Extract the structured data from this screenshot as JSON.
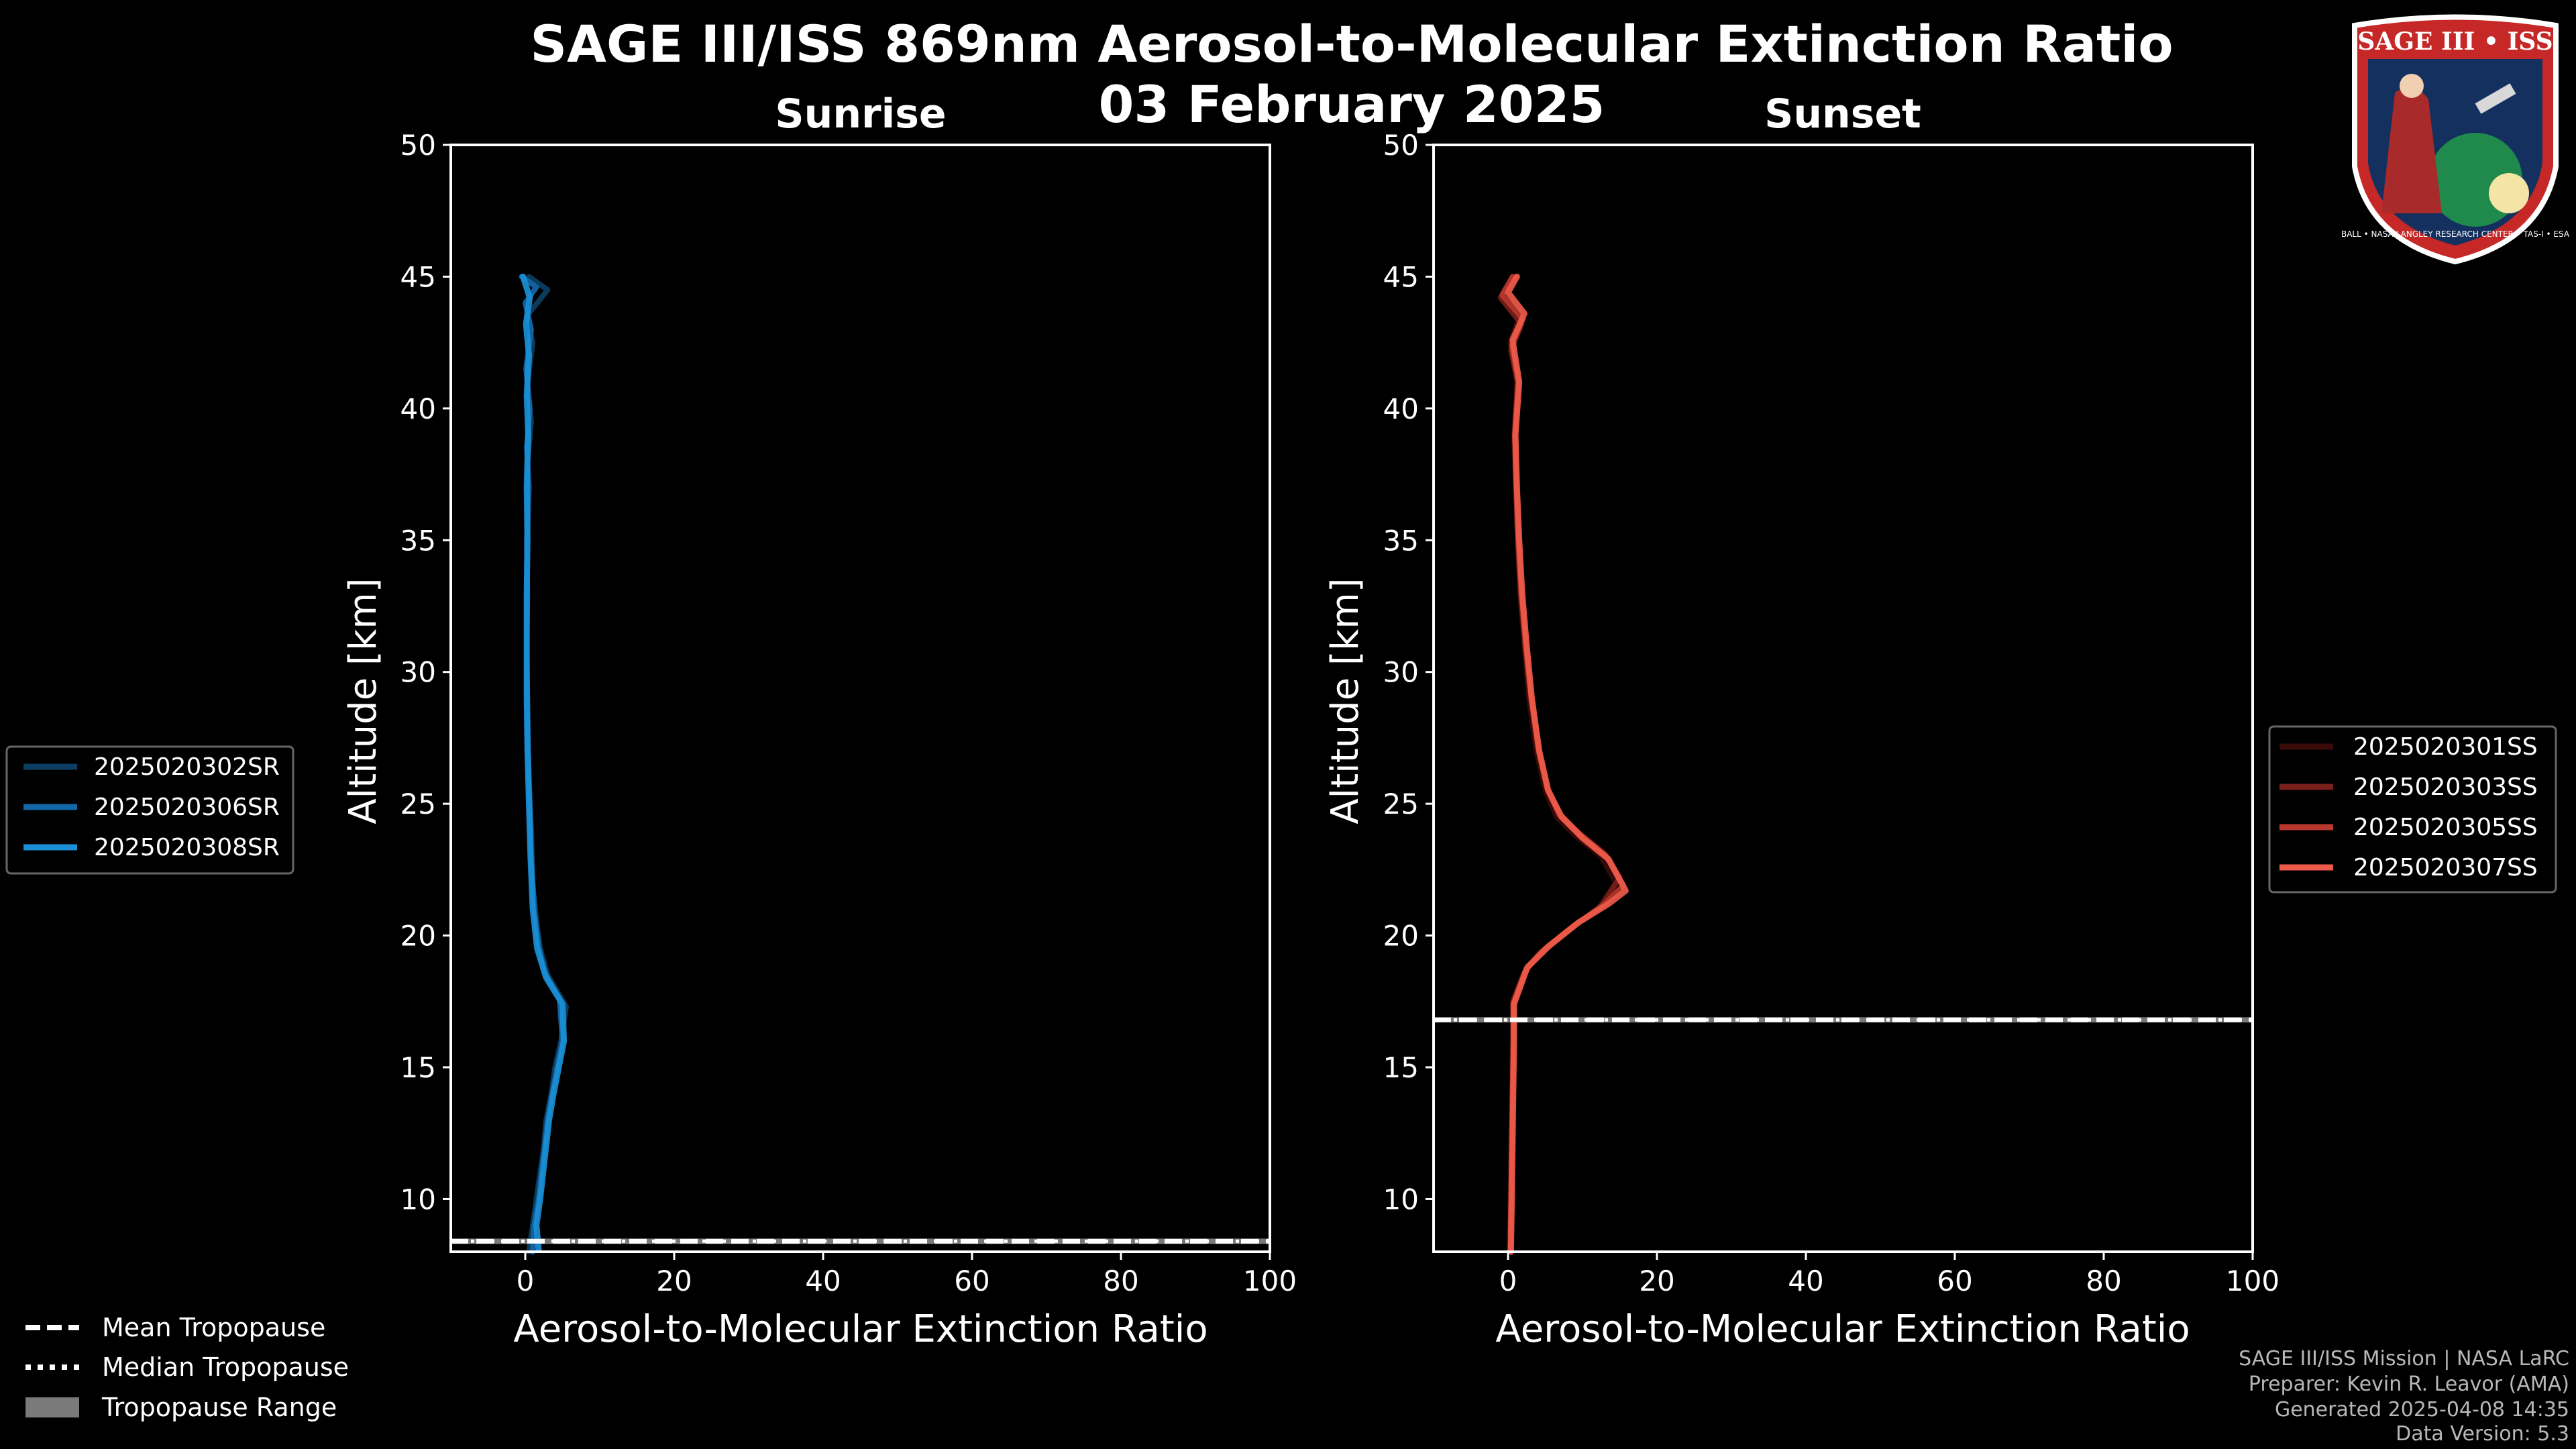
{
  "title": "SAGE III/ISS 869nm Aerosol-to-Molecular Extinction Ratio",
  "date": "03 February 2025",
  "colors": {
    "background": "#000000",
    "axis": "#ffffff",
    "sunrise": "#1a8fd6",
    "sunset": "#ee5a4a"
  },
  "chart_data": [
    {
      "type": "line",
      "panel": "left",
      "title": "Sunrise",
      "xlabel": "Aerosol-to-Molecular Extinction Ratio",
      "ylabel": "Altitude [km]",
      "xlim": [
        -10,
        100
      ],
      "ylim": [
        8,
        50
      ],
      "xticks": [
        0,
        20,
        40,
        60,
        80,
        100
      ],
      "yticks": [
        10,
        15,
        20,
        25,
        30,
        35,
        40,
        45,
        50
      ],
      "mean_tropopause_km": 8.4,
      "median_tropopause_km": 8.4,
      "tropopause_range_km": [
        8.3,
        8.5
      ],
      "series": [
        {
          "name": "2025020302SR",
          "color": "#0d3f63",
          "width": 8,
          "points": [
            [
              0.5,
              8.0
            ],
            [
              1.0,
              9
            ],
            [
              1.5,
              10
            ],
            [
              2.0,
              11
            ],
            [
              2.5,
              12
            ],
            [
              2.8,
              13
            ],
            [
              3.5,
              14
            ],
            [
              4.0,
              15
            ],
            [
              4.8,
              16
            ],
            [
              5.5,
              17.3
            ],
            [
              3.0,
              18.5
            ],
            [
              2.0,
              19.5
            ],
            [
              1.5,
              20.5
            ],
            [
              1.0,
              22
            ],
            [
              0.8,
              24
            ],
            [
              0.5,
              26
            ],
            [
              0.3,
              28
            ],
            [
              0.2,
              30
            ],
            [
              0.2,
              32
            ],
            [
              0.2,
              34
            ],
            [
              0.4,
              36
            ],
            [
              0.3,
              38
            ],
            [
              0.8,
              39.5
            ],
            [
              0.3,
              41
            ],
            [
              1.0,
              42.5
            ],
            [
              0.2,
              43.5
            ],
            [
              3.0,
              44.5
            ],
            [
              0.5,
              45
            ]
          ]
        },
        {
          "name": "2025020306SR",
          "color": "#1268a8",
          "width": 8,
          "points": [
            [
              1.0,
              8.0
            ],
            [
              1.2,
              9
            ],
            [
              1.8,
              10
            ],
            [
              2.2,
              11
            ],
            [
              2.6,
              12
            ],
            [
              3.0,
              13
            ],
            [
              3.6,
              14
            ],
            [
              4.3,
              15
            ],
            [
              5.0,
              16
            ],
            [
              4.6,
              17.6
            ],
            [
              2.6,
              18.6
            ],
            [
              1.8,
              19.6
            ],
            [
              1.2,
              21
            ],
            [
              0.8,
              23
            ],
            [
              0.6,
              25
            ],
            [
              0.4,
              27
            ],
            [
              0.3,
              29
            ],
            [
              0.2,
              31
            ],
            [
              0.3,
              33
            ],
            [
              0.2,
              35
            ],
            [
              0.5,
              37
            ],
            [
              0.2,
              38.5
            ],
            [
              0.6,
              40
            ],
            [
              0.1,
              41.5
            ],
            [
              0.8,
              43
            ],
            [
              0.0,
              44
            ],
            [
              1.5,
              44.6
            ],
            [
              -0.5,
              45
            ]
          ]
        },
        {
          "name": "2025020308SR",
          "color": "#1a8fd6",
          "width": 9,
          "points": [
            [
              1.8,
              8.1
            ],
            [
              1.5,
              9
            ],
            [
              2.0,
              10
            ],
            [
              2.4,
              11
            ],
            [
              2.8,
              12
            ],
            [
              3.2,
              13
            ],
            [
              3.8,
              14
            ],
            [
              4.5,
              15
            ],
            [
              5.2,
              16
            ],
            [
              5.0,
              17.4
            ],
            [
              2.8,
              18.4
            ],
            [
              1.6,
              19.5
            ],
            [
              1.0,
              21
            ],
            [
              0.7,
              23
            ],
            [
              0.5,
              25
            ],
            [
              0.3,
              27
            ],
            [
              0.2,
              29
            ],
            [
              0.2,
              31
            ],
            [
              0.2,
              33
            ],
            [
              0.3,
              35
            ],
            [
              0.2,
              37
            ],
            [
              0.4,
              39
            ],
            [
              0.2,
              40.5
            ],
            [
              0.5,
              42
            ],
            [
              0.1,
              43.2
            ],
            [
              0.6,
              44.2
            ],
            [
              -0.3,
              45
            ]
          ]
        }
      ],
      "legend": [
        "2025020302SR",
        "2025020306SR",
        "2025020308SR"
      ]
    },
    {
      "type": "line",
      "panel": "right",
      "title": "Sunset",
      "xlabel": "Aerosol-to-Molecular Extinction Ratio",
      "ylabel": "Altitude [km]",
      "xlim": [
        -10,
        100
      ],
      "ylim": [
        8,
        50
      ],
      "xticks": [
        0,
        20,
        40,
        60,
        80,
        100
      ],
      "yticks": [
        10,
        15,
        20,
        25,
        30,
        35,
        40,
        45,
        50
      ],
      "mean_tropopause_km": 16.8,
      "median_tropopause_km": 16.8,
      "tropopause_range_km": [
        16.7,
        16.9
      ],
      "series": [
        {
          "name": "2025020301SS",
          "color": "#3a0a08",
          "width": 8,
          "points": [
            [
              0.2,
              8
            ],
            [
              0.3,
              10
            ],
            [
              0.4,
              12
            ],
            [
              0.5,
              14
            ],
            [
              0.6,
              16
            ],
            [
              0.6,
              17.5
            ],
            [
              2.0,
              18.5
            ],
            [
              4.0,
              19.3
            ],
            [
              8.0,
              20.2
            ],
            [
              12.0,
              21
            ],
            [
              14.5,
              22
            ],
            [
              12.5,
              23
            ],
            [
              9.0,
              23.8
            ],
            [
              6.5,
              24.5
            ],
            [
              5.0,
              25.5
            ],
            [
              3.8,
              27
            ],
            [
              2.8,
              29
            ],
            [
              2.2,
              31
            ],
            [
              1.6,
              33
            ],
            [
              1.3,
              35
            ],
            [
              1.0,
              37
            ],
            [
              0.8,
              39
            ],
            [
              1.2,
              41
            ],
            [
              0.3,
              42.5
            ],
            [
              1.5,
              43.5
            ],
            [
              -0.5,
              44.3
            ],
            [
              0.8,
              45
            ]
          ]
        },
        {
          "name": "2025020303SS",
          "color": "#7a1f1a",
          "width": 8,
          "points": [
            [
              0.3,
              8
            ],
            [
              0.4,
              10
            ],
            [
              0.5,
              12
            ],
            [
              0.6,
              14
            ],
            [
              0.7,
              16
            ],
            [
              0.7,
              17.5
            ],
            [
              2.2,
              18.6
            ],
            [
              4.5,
              19.4
            ],
            [
              8.5,
              20.3
            ],
            [
              12.5,
              21.1
            ],
            [
              15.0,
              22.2
            ],
            [
              13.0,
              23.1
            ],
            [
              9.5,
              23.9
            ],
            [
              6.8,
              24.6
            ],
            [
              5.2,
              25.6
            ],
            [
              4.0,
              27.1
            ],
            [
              3.0,
              29.1
            ],
            [
              2.3,
              31
            ],
            [
              1.7,
              33
            ],
            [
              1.3,
              35
            ],
            [
              1.1,
              37
            ],
            [
              0.9,
              39
            ],
            [
              1.3,
              41
            ],
            [
              0.4,
              42.2
            ],
            [
              1.8,
              43.2
            ],
            [
              -1.0,
              44.2
            ],
            [
              1.0,
              45
            ]
          ]
        },
        {
          "name": "2025020305SS",
          "color": "#b8382e",
          "width": 8,
          "points": [
            [
              0.3,
              8
            ],
            [
              0.4,
              10
            ],
            [
              0.5,
              12
            ],
            [
              0.6,
              14
            ],
            [
              0.7,
              16
            ],
            [
              0.7,
              17.4
            ],
            [
              2.4,
              18.7
            ],
            [
              5.0,
              19.5
            ],
            [
              9.0,
              20.4
            ],
            [
              13.0,
              21.2
            ],
            [
              15.5,
              21.9
            ],
            [
              13.2,
              23.0
            ],
            [
              9.8,
              23.8
            ],
            [
              7.0,
              24.6
            ],
            [
              5.3,
              25.6
            ],
            [
              4.1,
              27.1
            ],
            [
              3.1,
              29.1
            ],
            [
              2.4,
              31
            ],
            [
              1.8,
              33
            ],
            [
              1.4,
              35
            ],
            [
              1.1,
              37
            ],
            [
              0.9,
              39
            ],
            [
              1.4,
              41
            ],
            [
              0.5,
              42.4
            ],
            [
              2.0,
              43.4
            ],
            [
              -0.8,
              44.3
            ],
            [
              0.6,
              45
            ]
          ]
        },
        {
          "name": "2025020307SS",
          "color": "#ee5a4a",
          "width": 9,
          "points": [
            [
              0.4,
              8
            ],
            [
              0.5,
              10
            ],
            [
              0.6,
              12
            ],
            [
              0.7,
              14
            ],
            [
              0.8,
              16
            ],
            [
              0.8,
              17.4
            ],
            [
              2.6,
              18.8
            ],
            [
              5.5,
              19.6
            ],
            [
              9.5,
              20.5
            ],
            [
              13.5,
              21.2
            ],
            [
              15.8,
              21.7
            ],
            [
              13.5,
              22.9
            ],
            [
              10.0,
              23.7
            ],
            [
              7.2,
              24.5
            ],
            [
              5.4,
              25.5
            ],
            [
              4.2,
              27
            ],
            [
              3.2,
              29
            ],
            [
              2.5,
              31
            ],
            [
              1.9,
              33
            ],
            [
              1.5,
              35
            ],
            [
              1.2,
              37
            ],
            [
              1.0,
              39
            ],
            [
              1.5,
              41
            ],
            [
              0.6,
              42.6
            ],
            [
              2.2,
              43.6
            ],
            [
              0.0,
              44.4
            ],
            [
              1.2,
              45
            ]
          ]
        }
      ],
      "legend": [
        "2025020301SS",
        "2025020303SS",
        "2025020305SS",
        "2025020307SS"
      ]
    }
  ],
  "tropopause_legend": {
    "mean": "Mean Tropopause",
    "median": "Median Tropopause",
    "range": "Tropopause Range"
  },
  "footer": {
    "line1": "SAGE III/ISS Mission | NASA LaRC",
    "line2": "Preparer: Kevin R. Leavor (AMA)",
    "line3": "Generated 2025-04-08 14:35",
    "line4": "Data Version: 5.3"
  },
  "logo": {
    "text": "SAGE III • ISS",
    "ring_text": "BALL • NASA LANGLEY RESEARCH CENTER • TAS-I • ESA"
  }
}
